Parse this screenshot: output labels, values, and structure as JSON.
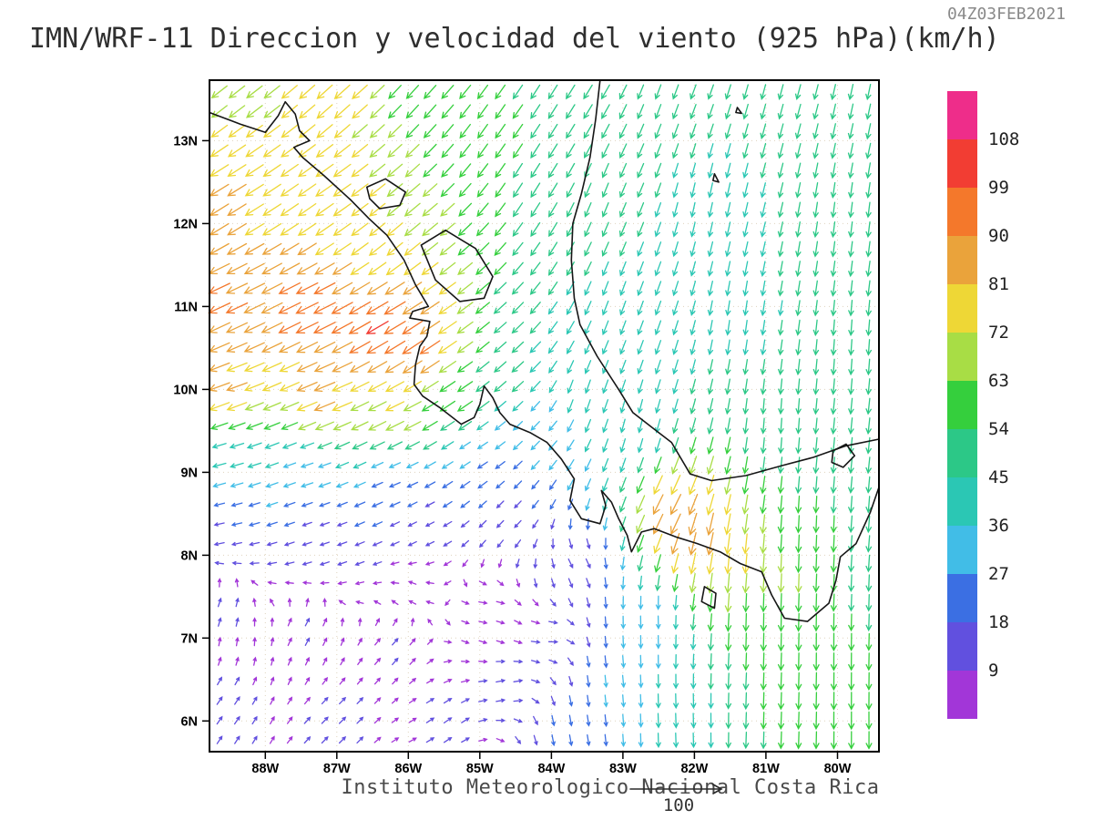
{
  "header": {
    "title": "IMN/WRF-11 Direccion y velocidad del viento (925 hPa)(km/h)",
    "timestamp": "04Z03FEB2021"
  },
  "footer": {
    "credit": "Instituto Meteorologico Nacional Costa Rica",
    "reference_label": "100"
  },
  "chart_data": {
    "type": "quiver",
    "type_note": "wind vector field over map (closest enum: scatter)",
    "title": "IMN/WRF-11 Direccion y velocidad del viento (925 hPa)(km/h)",
    "valid_time": "04Z03FEB2021",
    "variable": "Direccion y velocidad del viento",
    "level": "925 hPa",
    "units": "km/h",
    "credit": "Instituto Meteorologico Nacional Costa Rica",
    "reference_vector_value": 100,
    "lon_range": [
      -88.78,
      -79.42
    ],
    "lat_range": [
      5.63,
      13.73
    ],
    "grid_step_deg": 1,
    "lon_ticks": [
      {
        "value": -88,
        "label": "88W"
      },
      {
        "value": -87,
        "label": "87W"
      },
      {
        "value": -86,
        "label": "86W"
      },
      {
        "value": -85,
        "label": "85W"
      },
      {
        "value": -84,
        "label": "84W"
      },
      {
        "value": -83,
        "label": "83W"
      },
      {
        "value": -82,
        "label": "82W"
      },
      {
        "value": -81,
        "label": "81W"
      },
      {
        "value": -80,
        "label": "80W"
      }
    ],
    "lat_ticks": [
      {
        "value": 13,
        "label": "13N"
      },
      {
        "value": 12,
        "label": "12N"
      },
      {
        "value": 11,
        "label": "11N"
      },
      {
        "value": 10,
        "label": "10N"
      },
      {
        "value": 9,
        "label": "9N"
      },
      {
        "value": 8,
        "label": "8N"
      },
      {
        "value": 7,
        "label": "7N"
      },
      {
        "value": 6,
        "label": "6N"
      }
    ],
    "colorbar": {
      "labels_top_to_bottom": [
        "108",
        "99",
        "90",
        "81",
        "72",
        "63",
        "54",
        "45",
        "36",
        "27",
        "18",
        "9"
      ],
      "thresholds_ascending": [
        9,
        18,
        27,
        36,
        45,
        54,
        63,
        72,
        81,
        90,
        99,
        108
      ],
      "colors_top_to_bottom": [
        "#ee2d8a",
        "#f23d33",
        "#f4782b",
        "#eaa33b",
        "#eed736",
        "#a8dd45",
        "#35cf3d",
        "#2cc887",
        "#2bc7b4",
        "#41bde7",
        "#3b6fe3",
        "#6150df",
        "#a236d8"
      ]
    },
    "arrow_grid": {
      "cols": 38,
      "rows": 34,
      "edge_margin_deg": 0.14
    },
    "dir_convention": "math degrees: 0=toward east, 90=toward north, CCW; direction wind blows toward",
    "wind_control_points": [
      [
        -88.6,
        13.6,
        218,
        70
      ],
      [
        -87.0,
        13.6,
        222,
        75
      ],
      [
        -85.8,
        13.6,
        228,
        60
      ],
      [
        -84.8,
        13.2,
        235,
        55
      ],
      [
        -88.6,
        12.3,
        212,
        82
      ],
      [
        -87.2,
        12.3,
        215,
        80
      ],
      [
        -86.2,
        11.9,
        220,
        72
      ],
      [
        -88.6,
        11.0,
        205,
        92
      ],
      [
        -87.4,
        10.9,
        206,
        98
      ],
      [
        -86.4,
        10.8,
        210,
        102
      ],
      [
        -85.8,
        10.5,
        214,
        95
      ],
      [
        -88.6,
        10.0,
        200,
        84
      ],
      [
        -87.2,
        9.9,
        202,
        86
      ],
      [
        -86.2,
        9.7,
        206,
        75
      ],
      [
        -85.3,
        9.9,
        214,
        62
      ],
      [
        -84.6,
        10.2,
        222,
        48
      ],
      [
        -88.6,
        9.1,
        195,
        36
      ],
      [
        -87.4,
        9.0,
        198,
        30
      ],
      [
        -86.2,
        8.9,
        202,
        24
      ],
      [
        -85.0,
        9.2,
        212,
        26
      ],
      [
        -84.2,
        9.5,
        225,
        28
      ],
      [
        -83.8,
        13.6,
        238,
        52
      ],
      [
        -82.3,
        13.6,
        250,
        46
      ],
      [
        -80.8,
        13.6,
        255,
        46
      ],
      [
        -79.6,
        13.4,
        258,
        48
      ],
      [
        -83.3,
        12.3,
        248,
        46
      ],
      [
        -81.8,
        12.2,
        258,
        44
      ],
      [
        -79.8,
        12.0,
        263,
        46
      ],
      [
        -84.2,
        12.6,
        238,
        54
      ],
      [
        -83.0,
        11.0,
        250,
        44
      ],
      [
        -81.3,
        10.8,
        262,
        44
      ],
      [
        -79.8,
        10.5,
        266,
        48
      ],
      [
        -83.6,
        9.9,
        252,
        40
      ],
      [
        -82.8,
        9.6,
        256,
        38
      ],
      [
        -80.8,
        9.6,
        266,
        46
      ],
      [
        -79.7,
        9.2,
        264,
        50
      ],
      [
        -82.3,
        8.5,
        242,
        88
      ],
      [
        -81.9,
        8.2,
        258,
        92
      ],
      [
        -81.4,
        7.9,
        266,
        74
      ],
      [
        -81.1,
        7.2,
        269,
        60
      ],
      [
        -80.6,
        7.7,
        268,
        64
      ],
      [
        -80.2,
        8.3,
        268,
        55
      ],
      [
        -79.6,
        8.3,
        265,
        52
      ],
      [
        -80.1,
        6.9,
        270,
        58
      ],
      [
        -80.7,
        6.0,
        268,
        55
      ],
      [
        -79.8,
        6.0,
        270,
        58
      ],
      [
        -79.6,
        7.4,
        268,
        52
      ],
      [
        -82.6,
        7.2,
        272,
        32
      ],
      [
        -83.2,
        6.5,
        276,
        28
      ],
      [
        -82.2,
        6.0,
        272,
        42
      ],
      [
        -83.8,
        5.8,
        280,
        22
      ],
      [
        -88.6,
        8.4,
        192,
        17
      ],
      [
        -87.2,
        8.3,
        198,
        14
      ],
      [
        -85.8,
        8.3,
        206,
        12
      ],
      [
        -84.6,
        8.5,
        225,
        14
      ],
      [
        -88.6,
        7.4,
        70,
        11
      ],
      [
        -87.4,
        7.1,
        60,
        10
      ],
      [
        -86.2,
        6.9,
        48,
        11
      ],
      [
        -88.6,
        6.1,
        55,
        13
      ],
      [
        -87.0,
        6.0,
        45,
        12
      ],
      [
        -85.4,
        6.0,
        35,
        13
      ],
      [
        -84.6,
        6.4,
        15,
        12
      ],
      [
        -84.0,
        7.0,
        5,
        11
      ],
      [
        -84.9,
        7.4,
        355,
        9
      ],
      [
        -85.9,
        7.6,
        150,
        5
      ],
      [
        -83.6,
        7.9,
        300,
        16
      ]
    ],
    "coastlines": {
      "segments": [
        [
          [
            -88.78,
            13.34
          ],
          [
            -88.35,
            13.2
          ],
          [
            -88.0,
            13.1
          ],
          [
            -87.82,
            13.3
          ],
          [
            -87.72,
            13.47
          ],
          [
            -87.58,
            13.32
          ],
          [
            -87.52,
            13.12
          ],
          [
            -87.38,
            13.0
          ],
          [
            -87.6,
            12.92
          ],
          [
            -87.48,
            12.8
          ],
          [
            -87.18,
            12.58
          ],
          [
            -86.8,
            12.28
          ],
          [
            -86.55,
            12.06
          ],
          [
            -86.3,
            11.86
          ],
          [
            -86.06,
            11.56
          ],
          [
            -85.9,
            11.26
          ],
          [
            -85.72,
            11.0
          ],
          [
            -85.94,
            10.94
          ],
          [
            -85.98,
            10.86
          ],
          [
            -85.7,
            10.82
          ],
          [
            -85.74,
            10.64
          ],
          [
            -85.84,
            10.52
          ],
          [
            -85.9,
            10.3
          ],
          [
            -85.92,
            10.06
          ],
          [
            -85.8,
            9.92
          ],
          [
            -85.56,
            9.78
          ],
          [
            -85.26,
            9.58
          ],
          [
            -85.08,
            9.66
          ],
          [
            -85.0,
            9.82
          ],
          [
            -84.94,
            10.04
          ],
          [
            -84.82,
            9.9
          ],
          [
            -84.72,
            9.72
          ],
          [
            -84.58,
            9.58
          ],
          [
            -84.3,
            9.48
          ],
          [
            -84.06,
            9.36
          ],
          [
            -83.86,
            9.16
          ],
          [
            -83.68,
            8.92
          ],
          [
            -83.74,
            8.66
          ],
          [
            -83.58,
            8.44
          ],
          [
            -83.32,
            8.38
          ],
          [
            -83.24,
            8.6
          ],
          [
            -83.3,
            8.78
          ],
          [
            -83.16,
            8.64
          ],
          [
            -83.06,
            8.44
          ],
          [
            -82.94,
            8.24
          ],
          [
            -82.88,
            8.04
          ],
          [
            -82.74,
            8.28
          ],
          [
            -82.56,
            8.32
          ],
          [
            -82.26,
            8.22
          ],
          [
            -81.96,
            8.14
          ],
          [
            -81.64,
            8.04
          ],
          [
            -81.36,
            7.9
          ],
          [
            -81.06,
            7.8
          ],
          [
            -80.92,
            7.52
          ],
          [
            -80.74,
            7.24
          ],
          [
            -80.42,
            7.2
          ],
          [
            -80.12,
            7.42
          ],
          [
            -80.02,
            7.7
          ],
          [
            -79.96,
            7.98
          ],
          [
            -79.74,
            8.14
          ],
          [
            -79.54,
            8.52
          ],
          [
            -79.42,
            8.82
          ]
        ],
        [
          [
            -79.42,
            9.4
          ],
          [
            -79.88,
            9.32
          ],
          [
            -80.34,
            9.18
          ],
          [
            -80.78,
            9.08
          ],
          [
            -81.28,
            8.96
          ],
          [
            -81.76,
            8.9
          ],
          [
            -82.06,
            8.98
          ],
          [
            -82.32,
            9.36
          ],
          [
            -82.56,
            9.52
          ],
          [
            -82.86,
            9.72
          ],
          [
            -83.06,
            10.0
          ],
          [
            -83.36,
            10.4
          ],
          [
            -83.6,
            10.78
          ],
          [
            -83.68,
            11.1
          ],
          [
            -83.72,
            11.56
          ],
          [
            -83.7,
            12.0
          ],
          [
            -83.58,
            12.36
          ],
          [
            -83.46,
            12.8
          ],
          [
            -83.38,
            13.26
          ],
          [
            -83.32,
            13.73
          ]
        ]
      ],
      "lakes": [
        [
          [
            -86.58,
            12.44
          ],
          [
            -86.32,
            12.54
          ],
          [
            -86.04,
            12.38
          ],
          [
            -86.12,
            12.22
          ],
          [
            -86.4,
            12.18
          ],
          [
            -86.54,
            12.3
          ],
          [
            -86.58,
            12.44
          ]
        ],
        [
          [
            -85.82,
            11.74
          ],
          [
            -85.48,
            11.92
          ],
          [
            -85.06,
            11.7
          ],
          [
            -84.82,
            11.36
          ],
          [
            -84.94,
            11.1
          ],
          [
            -85.28,
            11.06
          ],
          [
            -85.62,
            11.32
          ],
          [
            -85.82,
            11.74
          ]
        ],
        [
          [
            -80.06,
            9.26
          ],
          [
            -79.88,
            9.34
          ],
          [
            -79.76,
            9.2
          ],
          [
            -79.92,
            9.06
          ],
          [
            -80.08,
            9.12
          ],
          [
            -80.06,
            9.26
          ]
        ]
      ],
      "islands": [
        [
          [
            -81.86,
            7.62
          ],
          [
            -81.7,
            7.54
          ],
          [
            -81.72,
            7.36
          ],
          [
            -81.9,
            7.44
          ],
          [
            -81.86,
            7.62
          ]
        ],
        [
          [
            -81.72,
            12.6
          ],
          [
            -81.66,
            12.5
          ],
          [
            -81.74,
            12.52
          ],
          [
            -81.72,
            12.6
          ]
        ],
        [
          [
            -81.4,
            13.4
          ],
          [
            -81.34,
            13.33
          ],
          [
            -81.42,
            13.34
          ],
          [
            -81.4,
            13.4
          ]
        ]
      ]
    }
  }
}
